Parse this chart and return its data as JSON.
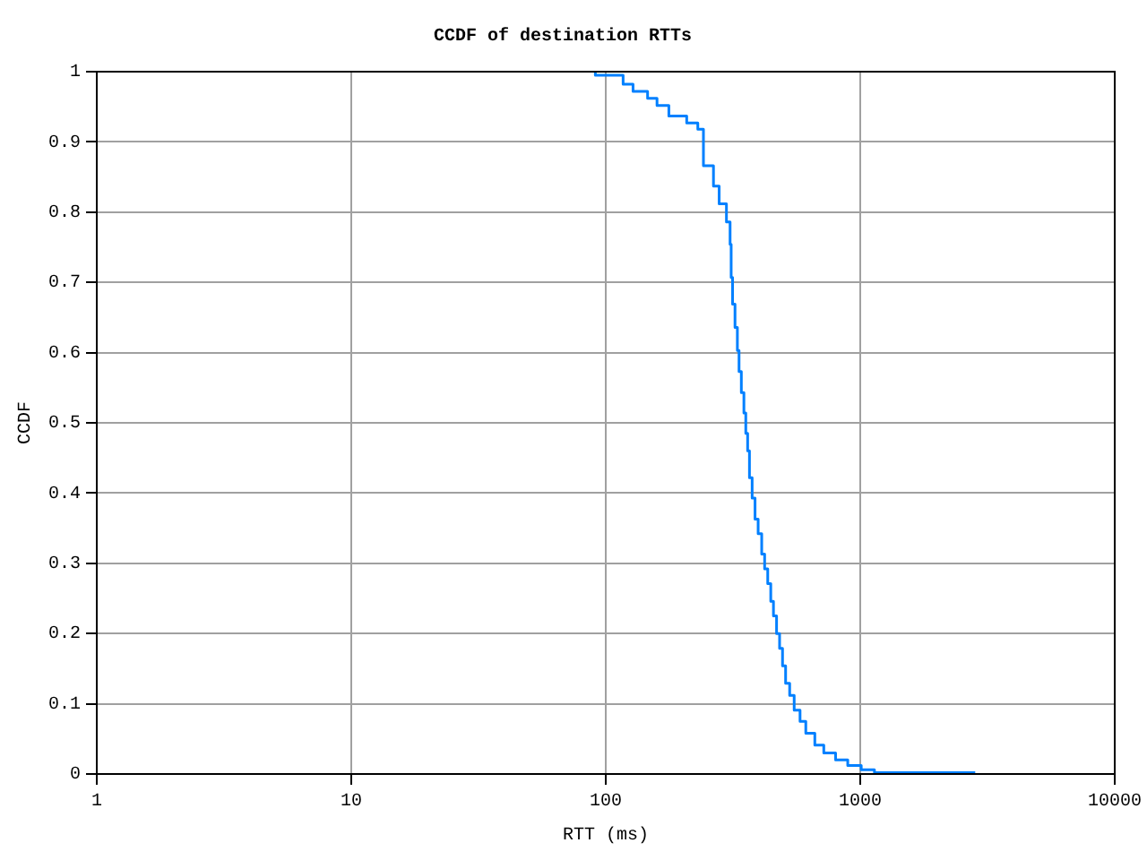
{
  "chart_data": {
    "type": "step",
    "title": "CCDF of destination RTTs",
    "xlabel": "RTT (ms)",
    "ylabel": "CCDF",
    "log": "x",
    "xlim": [
      1,
      10000
    ],
    "xticks": [
      1,
      10,
      100,
      1000,
      10000
    ],
    "ylim": [
      0,
      1
    ],
    "yticks": [
      0,
      0.1,
      0.2,
      0.3,
      0.4,
      0.5,
      0.6,
      0.7,
      0.8,
      0.9,
      1
    ],
    "grid": true,
    "legend": false,
    "line_style": "solid",
    "marker": "none",
    "series": [
      {
        "color": "#0080ff",
        "x": [
          91,
          117,
          128,
          146,
          159,
          177,
          208,
          230,
          242,
          265,
          279,
          298,
          308,
          311,
          315,
          322,
          329,
          334,
          341,
          349,
          355,
          361,
          367,
          376,
          386,
          397,
          410,
          421,
          433,
          445,
          456,
          469,
          482,
          495,
          509,
          528,
          550,
          580,
          611,
          663,
          719,
          800,
          893,
          1009,
          1137,
          1301,
          2830
        ],
        "values": [
          1,
          0.995,
          0.982,
          0.972,
          0.962,
          0.952,
          0.937,
          0.927,
          0.918,
          0.866,
          0.837,
          0.812,
          0.786,
          0.754,
          0.707,
          0.669,
          0.636,
          0.603,
          0.573,
          0.543,
          0.514,
          0.485,
          0.46,
          0.422,
          0.393,
          0.363,
          0.342,
          0.313,
          0.292,
          0.271,
          0.246,
          0.225,
          0.2,
          0.179,
          0.154,
          0.129,
          0.112,
          0.091,
          0.075,
          0.058,
          0.041,
          0.03,
          0.02,
          0.012,
          0.006,
          0.002,
          0.002
        ]
      }
    ]
  }
}
